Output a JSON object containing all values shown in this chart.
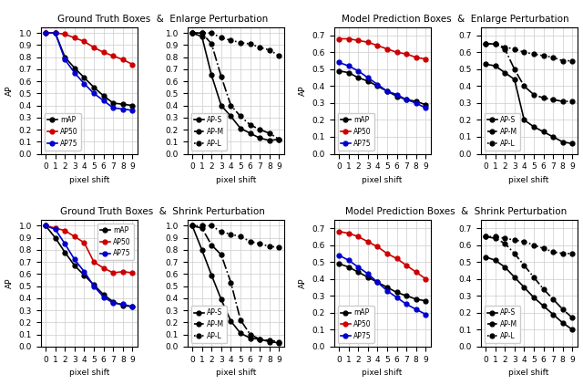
{
  "x": [
    0,
    1,
    2,
    3,
    4,
    5,
    6,
    7,
    8,
    9
  ],
  "titles": [
    [
      "Ground Truth Boxes  &  Enlarge Perturbation",
      "Model Prediction Boxes  &  Enlarge Perturbation"
    ],
    [
      "Ground Truth Boxes  &  Shrink Perturbation",
      "Model Prediction Boxes  &  Shrink Perturbation"
    ]
  ],
  "gt_enlarge_left": {
    "mAP": [
      1.0,
      1.0,
      0.8,
      0.71,
      0.63,
      0.55,
      0.48,
      0.42,
      0.41,
      0.4
    ],
    "AP50": [
      1.0,
      1.0,
      0.99,
      0.96,
      0.93,
      0.88,
      0.84,
      0.81,
      0.78,
      0.74
    ],
    "AP75": [
      1.0,
      1.0,
      0.78,
      0.67,
      0.58,
      0.5,
      0.44,
      0.38,
      0.37,
      0.36
    ]
  },
  "gt_enlarge_right": {
    "AP-S": [
      1.0,
      0.97,
      0.65,
      0.4,
      0.31,
      0.21,
      0.17,
      0.13,
      0.11,
      0.12
    ],
    "AP-M": [
      1.0,
      1.0,
      0.91,
      0.64,
      0.4,
      0.31,
      0.24,
      0.2,
      0.17,
      0.12
    ],
    "AP-L": [
      1.0,
      1.0,
      1.0,
      0.96,
      0.94,
      0.92,
      0.91,
      0.88,
      0.86,
      0.81
    ]
  },
  "model_enlarge_left": {
    "mAP": [
      0.49,
      0.48,
      0.45,
      0.43,
      0.4,
      0.37,
      0.34,
      0.32,
      0.31,
      0.29
    ],
    "AP50": [
      0.68,
      0.68,
      0.67,
      0.66,
      0.64,
      0.62,
      0.6,
      0.59,
      0.57,
      0.56
    ],
    "AP75": [
      0.54,
      0.52,
      0.49,
      0.45,
      0.41,
      0.37,
      0.35,
      0.32,
      0.3,
      0.27
    ]
  },
  "model_enlarge_right": {
    "AP-S": [
      0.53,
      0.52,
      0.48,
      0.44,
      0.2,
      0.16,
      0.13,
      0.1,
      0.07,
      0.06
    ],
    "AP-M": [
      0.65,
      0.65,
      0.62,
      0.5,
      0.4,
      0.35,
      0.33,
      0.32,
      0.31,
      0.31
    ],
    "AP-L": [
      0.65,
      0.65,
      0.63,
      0.62,
      0.6,
      0.59,
      0.58,
      0.57,
      0.55,
      0.55
    ]
  },
  "gt_shrink_left": {
    "mAP": [
      1.0,
      0.9,
      0.78,
      0.67,
      0.59,
      0.51,
      0.43,
      0.37,
      0.34,
      0.33
    ],
    "AP50": [
      1.0,
      0.98,
      0.96,
      0.91,
      0.86,
      0.7,
      0.65,
      0.61,
      0.62,
      0.61
    ],
    "AP75": [
      1.0,
      0.97,
      0.85,
      0.72,
      0.62,
      0.5,
      0.41,
      0.36,
      0.35,
      0.33
    ]
  },
  "gt_shrink_right": {
    "AP-S": [
      1.0,
      0.8,
      0.59,
      0.39,
      0.21,
      0.11,
      0.07,
      0.06,
      0.04,
      0.03
    ],
    "AP-M": [
      1.0,
      0.98,
      0.84,
      0.76,
      0.53,
      0.22,
      0.1,
      0.06,
      0.05,
      0.04
    ],
    "AP-L": [
      1.0,
      1.0,
      1.0,
      0.95,
      0.93,
      0.91,
      0.87,
      0.85,
      0.83,
      0.82
    ]
  },
  "model_shrink_left": {
    "mAP": [
      0.49,
      0.47,
      0.44,
      0.41,
      0.38,
      0.35,
      0.32,
      0.3,
      0.28,
      0.27
    ],
    "AP50": [
      0.68,
      0.67,
      0.65,
      0.62,
      0.59,
      0.55,
      0.52,
      0.48,
      0.44,
      0.4
    ],
    "AP75": [
      0.54,
      0.51,
      0.47,
      0.43,
      0.38,
      0.33,
      0.29,
      0.25,
      0.22,
      0.19
    ]
  },
  "model_shrink_right": {
    "AP-S": [
      0.53,
      0.51,
      0.47,
      0.41,
      0.35,
      0.29,
      0.24,
      0.19,
      0.14,
      0.1
    ],
    "AP-M": [
      0.65,
      0.64,
      0.61,
      0.55,
      0.48,
      0.41,
      0.34,
      0.28,
      0.22,
      0.17
    ],
    "AP-L": [
      0.65,
      0.65,
      0.64,
      0.63,
      0.62,
      0.6,
      0.58,
      0.56,
      0.55,
      0.55
    ]
  },
  "colors_left": {
    "mAP": "#000000",
    "AP50": "#cc0000",
    "AP75": "#0000cc"
  },
  "colors_right": {
    "AP-S": "#000000",
    "AP-M": "#000000",
    "AP-L": "#000000"
  },
  "linestyles_left": {
    "mAP": "-",
    "AP50": "-",
    "AP75": "-"
  },
  "linestyles_right": {
    "AP-S": "-",
    "AP-M": "-.",
    "AP-L": ":"
  },
  "marker": "o",
  "markersize": 3.5,
  "linewidth": 1.2,
  "ylabel": "AP",
  "xlabel": "pixel shift",
  "ylim_gt": [
    0.0,
    1.05
  ],
  "yticks_gt": [
    0.0,
    0.1,
    0.2,
    0.3,
    0.4,
    0.5,
    0.6,
    0.7,
    0.8,
    0.9,
    1.0
  ],
  "ylim_model": [
    0.0,
    0.75
  ],
  "yticks_model": [
    0.0,
    0.1,
    0.2,
    0.3,
    0.4,
    0.5,
    0.6,
    0.7
  ],
  "legend_left_gt_enlarge": "lower left",
  "legend_left_gt_shrink": "upper right",
  "legend_left_model": "lower left",
  "legend_right": "lower left"
}
